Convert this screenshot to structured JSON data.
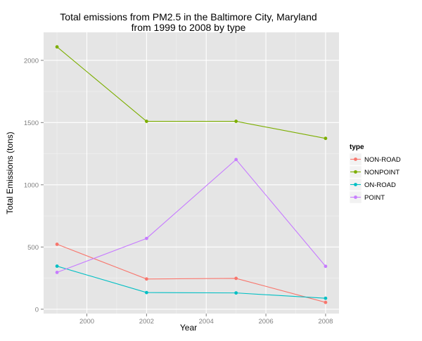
{
  "chart_data": {
    "type": "line",
    "title": "Total emissions from PM2.5 in the Baltimore City, Maryland\nfrom 1999 to 2008 by type",
    "xlabel": "Year",
    "ylabel": "Total Emissions (tons)",
    "x": [
      1999,
      2002,
      2005,
      2008
    ],
    "xticks": [
      2000,
      2002,
      2004,
      2006,
      2008
    ],
    "yticks": [
      0,
      500,
      1000,
      1500,
      2000
    ],
    "xlim": [
      1998.55,
      2008.45
    ],
    "ylim": [
      -35,
      2225
    ],
    "grid": true,
    "legend": {
      "title": "type",
      "placement": "right"
    },
    "series": [
      {
        "name": "NON-ROAD",
        "values": [
          522,
          243,
          248,
          55
        ],
        "color": "#F8766D"
      },
      {
        "name": "NONPOINT",
        "values": [
          2108,
          1510,
          1510,
          1373
        ],
        "color": "#7CAE00"
      },
      {
        "name": "ON-ROAD",
        "values": [
          346,
          134,
          131,
          88
        ],
        "color": "#00BFC4"
      },
      {
        "name": "POINT",
        "values": [
          296,
          569,
          1203,
          345
        ],
        "color": "#C77CFF"
      }
    ]
  },
  "colors": {
    "panel": "#E5E5E5",
    "grid_major": "#FFFFFF",
    "grid_minor": "#F2F2F2",
    "tick_text": "#7F7F7F",
    "text": "#000000"
  }
}
